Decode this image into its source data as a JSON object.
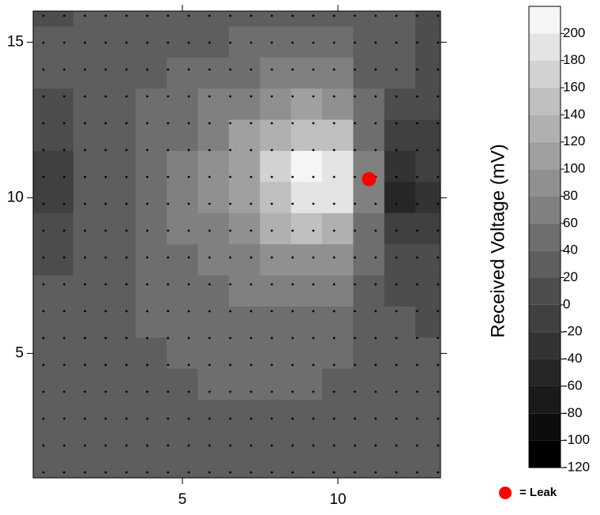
{
  "chart_data": {
    "type": "contour",
    "xlim": [
      0.2,
      13.3
    ],
    "ylim": [
      1,
      16
    ],
    "xticks": [
      5,
      10
    ],
    "yticks": [
      5,
      10,
      15
    ],
    "x": [
      1,
      2,
      3,
      4,
      5,
      6,
      7,
      8,
      9,
      10,
      11,
      12,
      13
    ],
    "y": [
      16,
      15,
      14,
      13,
      12,
      11,
      10,
      9,
      8,
      7,
      6,
      5,
      4,
      3,
      2,
      1
    ],
    "z": [
      [
        15,
        25,
        25,
        25,
        25,
        28,
        30,
        32,
        32,
        30,
        25,
        20,
        15
      ],
      [
        20,
        25,
        25,
        28,
        32,
        38,
        42,
        45,
        45,
        42,
        30,
        22,
        18
      ],
      [
        20,
        25,
        28,
        35,
        42,
        50,
        58,
        65,
        68,
        62,
        38,
        20,
        15
      ],
      [
        15,
        25,
        30,
        40,
        50,
        62,
        78,
        95,
        105,
        95,
        45,
        10,
        5
      ],
      [
        10,
        22,
        32,
        45,
        58,
        75,
        100,
        130,
        150,
        140,
        55,
        -10,
        -5
      ],
      [
        -15,
        20,
        35,
        48,
        62,
        82,
        115,
        160,
        200,
        190,
        70,
        -40,
        -20
      ],
      [
        -15,
        20,
        35,
        48,
        62,
        82,
        112,
        155,
        195,
        185,
        65,
        -45,
        -25
      ],
      [
        10,
        22,
        35,
        47,
        60,
        75,
        98,
        125,
        140,
        125,
        50,
        -15,
        -5
      ],
      [
        18,
        25,
        35,
        45,
        55,
        65,
        78,
        90,
        95,
        85,
        40,
        5,
        5
      ],
      [
        20,
        25,
        33,
        42,
        50,
        56,
        62,
        66,
        66,
        60,
        35,
        15,
        10
      ],
      [
        22,
        25,
        30,
        40,
        45,
        50,
        52,
        55,
        55,
        50,
        32,
        20,
        18
      ],
      [
        22,
        25,
        28,
        35,
        42,
        46,
        48,
        50,
        48,
        44,
        30,
        22,
        20
      ],
      [
        20,
        25,
        26,
        30,
        38,
        42,
        44,
        44,
        42,
        38,
        28,
        22,
        20
      ],
      [
        20,
        22,
        25,
        26,
        32,
        36,
        38,
        36,
        34,
        30,
        26,
        22,
        20
      ],
      [
        20,
        22,
        22,
        25,
        26,
        28,
        30,
        28,
        26,
        25,
        24,
        22,
        20
      ],
      [
        20,
        20,
        22,
        22,
        24,
        25,
        25,
        25,
        24,
        24,
        22,
        20,
        20
      ]
    ],
    "colorbar": {
      "label": "Received Voltage (mV)",
      "levels": [
        -120,
        -100,
        -80,
        -60,
        -40,
        -20,
        0,
        20,
        40,
        60,
        80,
        100,
        120,
        140,
        160,
        180,
        200,
        220
      ],
      "colors": [
        "#000000",
        "#0d0d0d",
        "#1a1a1a",
        "#262626",
        "#333333",
        "#404040",
        "#4d4d4d",
        "#5e5e5e",
        "#6e6e6e",
        "#808080",
        "#909090",
        "#a0a0a0",
        "#b0b0b0",
        "#c0c0c0",
        "#d2d2d2",
        "#e4e4e4",
        "#f5f5f5"
      ],
      "ticks": [
        -120,
        -100,
        -80,
        -60,
        -40,
        -20,
        0,
        20,
        40,
        60,
        80,
        100,
        120,
        140,
        160,
        180,
        200
      ]
    },
    "leak": {
      "x": 11.0,
      "y": 10.6,
      "label": "= Leak",
      "color": "#ff0000"
    }
  }
}
